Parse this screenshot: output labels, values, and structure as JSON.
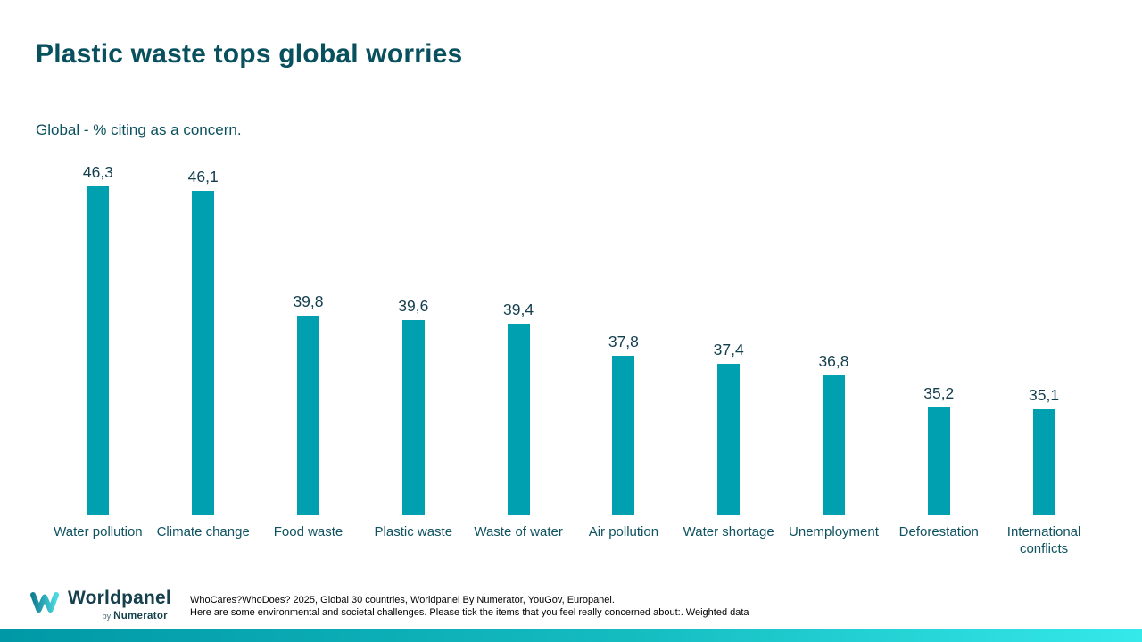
{
  "page": {
    "title": "Plastic waste tops global worries",
    "subtitle": "Global - % citing as a concern."
  },
  "chart_data": {
    "type": "bar",
    "title": "Plastic waste tops global worries",
    "subtitle": "Global - % citing as a concern.",
    "categories": [
      "Water pollution",
      "Climate change",
      "Food waste",
      "Plastic waste",
      "Waste of water",
      "Air pollution",
      "Water shortage",
      "Unemployment",
      "Deforestation",
      "International conflicts"
    ],
    "values": [
      46.3,
      46.1,
      39.8,
      39.6,
      39.4,
      37.8,
      37.4,
      36.8,
      35.2,
      35.1
    ],
    "value_labels": [
      "46,3",
      "46,1",
      "39,8",
      "39,6",
      "39,4",
      "37,8",
      "37,4",
      "36,8",
      "35,2",
      "35,1"
    ],
    "xlabel": "",
    "ylabel": "% citing as a concern",
    "ylim": [
      29.8,
      47.6
    ],
    "grid": false,
    "legend": false,
    "data_labels_position": "above-bar",
    "bar_color": "#00A0B0"
  },
  "footer": {
    "logo": {
      "mark": "worldpanel-w-logo",
      "brand": "Worldpanel",
      "by": "by",
      "sub_brand": "Numerator"
    },
    "source_line1": "WhoCares?WhoDoes? 2025, Global 30 countries, Worldpanel By Numerator, YouGov, Europanel.",
    "source_line2": "Here are some environmental and societal challenges. Please tick the items that you feel really concerned about:. Weighted data"
  },
  "colors": {
    "title_text": "#08505E",
    "bar_fill": "#00A0B0",
    "value_label_text": "#123E4E",
    "category_label_text": "#0F5260",
    "stripe_gradient_left": "#0098A6",
    "stripe_gradient_right": "#35E8E9",
    "logo_mark_dark": "#137F95",
    "logo_mark_light": "#4ADAE0"
  }
}
